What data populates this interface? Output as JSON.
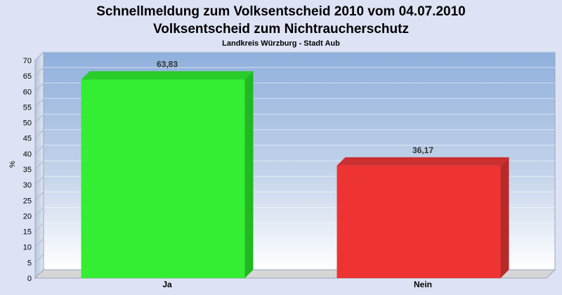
{
  "chart_data": {
    "type": "bar",
    "title": "Schnellmeldung zum Volksentscheid 2010 vom 04.07.2010",
    "subtitle": "Volksentscheid zum Nichtraucherschutz",
    "caption": "Landkreis Würzburg - Stadt Aub",
    "ylabel": "%",
    "xlabel": "",
    "ylim": [
      0,
      70
    ],
    "ytick_step": 5,
    "grid": true,
    "categories": [
      "Ja",
      "Nein"
    ],
    "values": [
      63.83,
      36.17
    ],
    "value_labels": [
      "63,83",
      "36,17"
    ],
    "colors": [
      "#33ee33",
      "#ee3333"
    ]
  }
}
